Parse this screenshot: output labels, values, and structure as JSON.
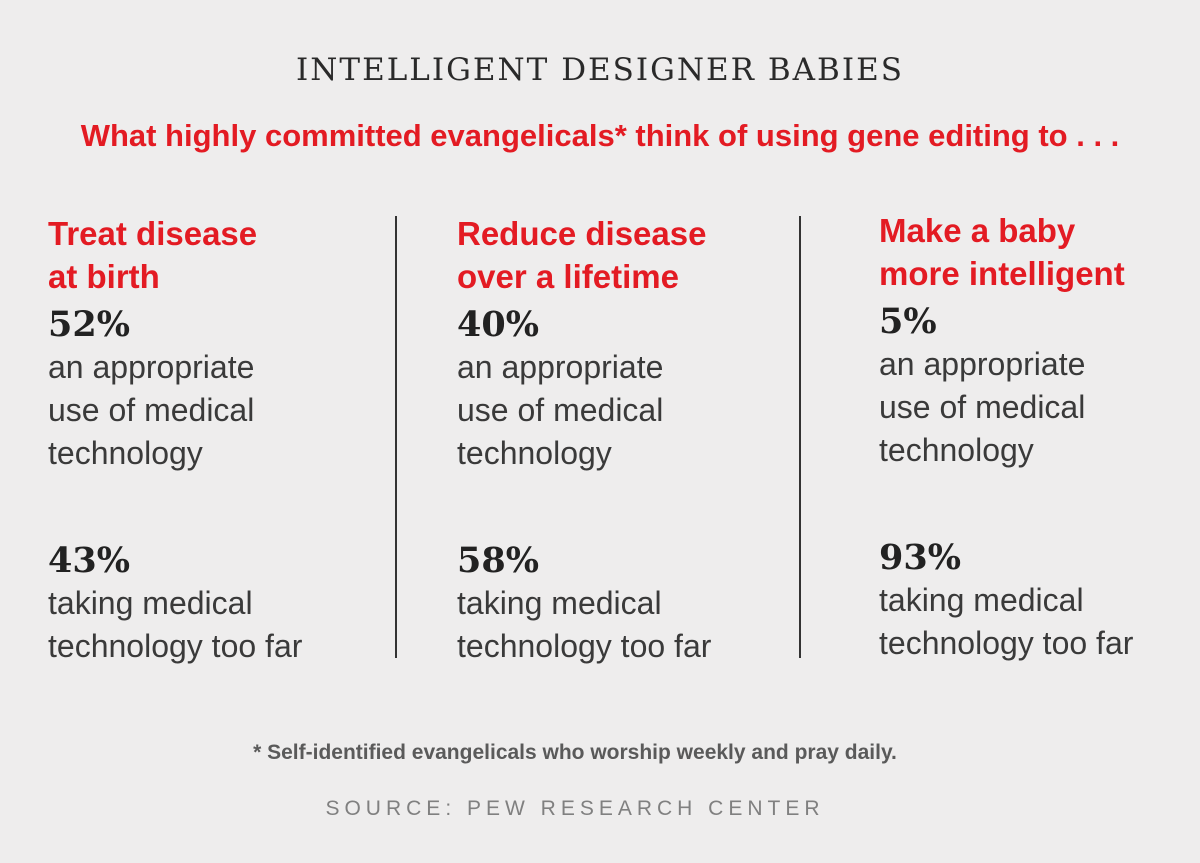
{
  "chart_data": {
    "type": "table",
    "title": "INTELLIGENT DESIGNER BABIES",
    "subtitle": "What highly committed evangelicals* think of using gene editing to . . .",
    "categories": [
      "Treat disease\nat birth",
      "Reduce disease\nover a lifetime",
      "Make a baby\nmore intelligent"
    ],
    "series": [
      {
        "name": "an appropriate\nuse of medical\ntechnology",
        "values": [
          "52%",
          "40%",
          "5%"
        ]
      },
      {
        "name": "taking medical\ntechnology too far",
        "values": [
          "43%",
          "58%",
          "93%"
        ]
      }
    ],
    "footnote": "* Self-identified evangelicals who worship weekly and pray daily.",
    "source": "SOURCE: PEW RESEARCH CENTER"
  }
}
